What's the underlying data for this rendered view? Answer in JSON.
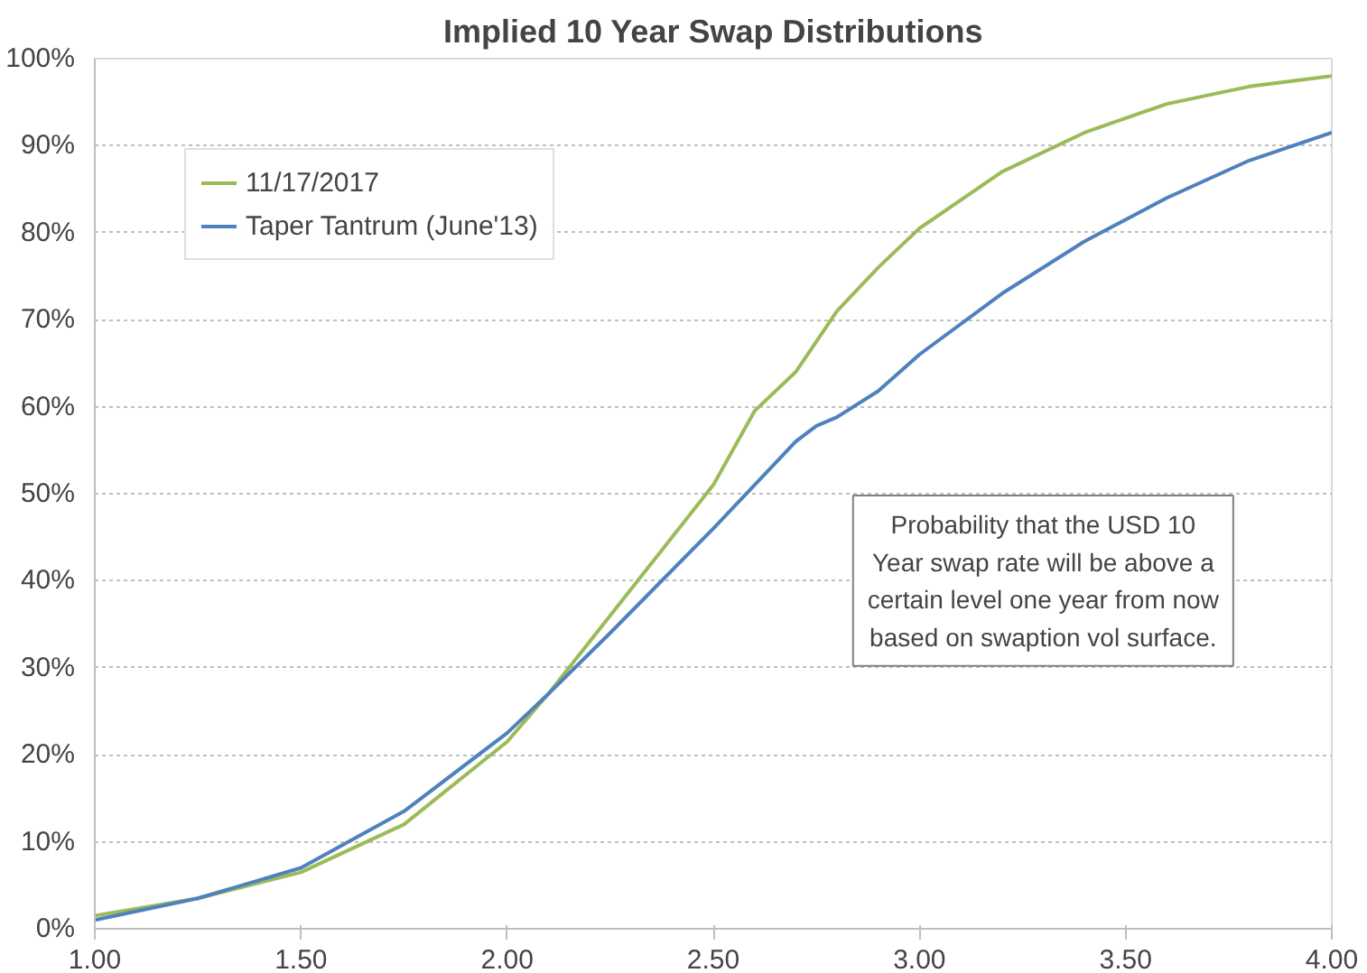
{
  "chart_data": {
    "type": "line",
    "title": "Implied 10 Year Swap Distributions",
    "x": [
      1.0,
      1.25,
      1.5,
      1.75,
      2.0,
      2.1,
      2.25,
      2.5,
      2.6,
      2.7,
      2.75,
      2.8,
      2.9,
      3.0,
      3.2,
      3.4,
      3.6,
      3.8,
      4.0
    ],
    "series": [
      {
        "name": "11/17/2017",
        "color": "#9bbb59",
        "values": [
          1.5,
          3.5,
          6.5,
          12,
          21.5,
          27,
          36,
          51,
          59.5,
          64,
          67.5,
          71,
          76,
          80.5,
          87,
          91.5,
          94.8,
          96.8,
          98
        ]
      },
      {
        "name": "Taper Tantrum (June'13)",
        "color": "#4f81bd",
        "values": [
          1,
          3.5,
          7,
          13.5,
          22.5,
          27,
          34,
          46,
          51,
          56,
          57.8,
          58.8,
          61.8,
          66,
          73,
          79,
          84,
          88.3,
          91.5
        ]
      }
    ],
    "xlim": [
      1.0,
      4.0
    ],
    "xticks": [
      {
        "value": 1.0,
        "label": "1.00"
      },
      {
        "value": 1.5,
        "label": "1.50"
      },
      {
        "value": 2.0,
        "label": "2.00"
      },
      {
        "value": 2.5,
        "label": "2.50"
      },
      {
        "value": 3.0,
        "label": "3.00"
      },
      {
        "value": 3.5,
        "label": "3.50"
      },
      {
        "value": 4.0,
        "label": "4.00"
      }
    ],
    "ylim": [
      0,
      100
    ],
    "yticks": [
      {
        "value": 0,
        "label": "0%"
      },
      {
        "value": 10,
        "label": "10%"
      },
      {
        "value": 20,
        "label": "20%"
      },
      {
        "value": 30,
        "label": "30%"
      },
      {
        "value": 40,
        "label": "40%"
      },
      {
        "value": 50,
        "label": "50%"
      },
      {
        "value": 60,
        "label": "60%"
      },
      {
        "value": 70,
        "label": "70%"
      },
      {
        "value": 80,
        "label": "80%"
      },
      {
        "value": 90,
        "label": "90%"
      },
      {
        "value": 100,
        "label": "100%"
      }
    ],
    "grid": "y",
    "legend": "top left",
    "line_style": "solid",
    "marker": "none",
    "annotations": [
      "Probability that the USD 10\nYear swap rate will be above a\ncertain level one year from now\nbased on swaption vol surface."
    ]
  }
}
